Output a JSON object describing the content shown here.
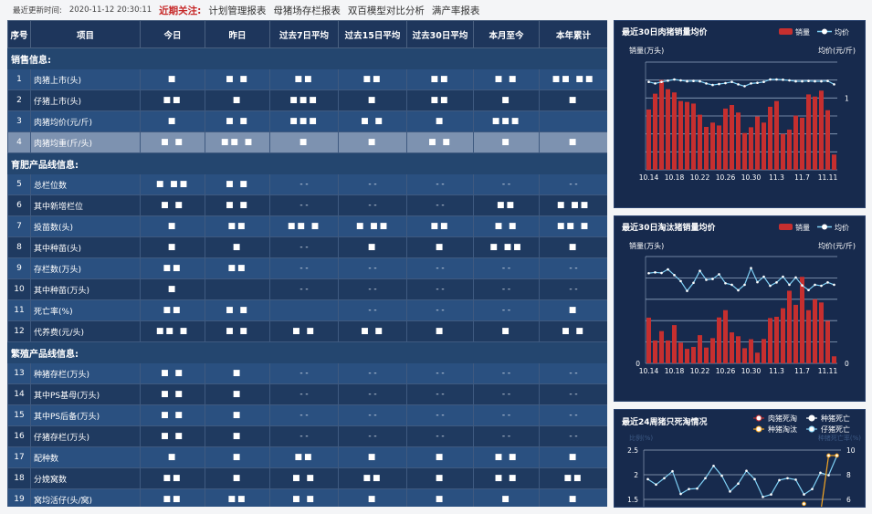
{
  "topbar": {
    "update_label": "最近更新时间:",
    "update_time": "2020-11-12 20:30:11",
    "focus_label": "近期关注:",
    "links": [
      "计划管理报表",
      "母猪场存栏报表",
      "双百模型对比分析",
      "满产率报表"
    ]
  },
  "table": {
    "headers": [
      "序号",
      "项目",
      "今日",
      "昨日",
      "过去7日平均",
      "过去15日平均",
      "过去30日平均",
      "本月至今",
      "本年累计"
    ],
    "sections": [
      {
        "title": "销售信息:",
        "rows": [
          {
            "no": "1",
            "name": "肉猪上市(头)",
            "cells": [
              "■",
              "■ ■",
              "■■",
              "■■",
              "■■",
              "■ ■",
              "■■ ■■"
            ]
          },
          {
            "no": "2",
            "name": "仔猪上市(头)",
            "cells": [
              "■■",
              "■",
              "■■■",
              "■",
              "■■",
              "■",
              "■"
            ]
          },
          {
            "no": "3",
            "name": "肉猪均价(元/斤)",
            "cells": [
              "■",
              "■ ■",
              "■■■",
              "■ ■",
              "■",
              "■■■",
              ""
            ]
          },
          {
            "no": "4",
            "name": "肉猪均重(斤/头)",
            "cells": [
              "■ ■",
              "■■ ■",
              "■",
              "■",
              "■ ■",
              "■",
              "■"
            ],
            "highlight": true
          }
        ]
      },
      {
        "title": "育肥产品线信息:",
        "rows": [
          {
            "no": "5",
            "name": "总栏位数",
            "cells": [
              "■ ■■",
              "■ ■",
              "- -",
              "- -",
              "- -",
              "- -",
              "- -"
            ]
          },
          {
            "no": "6",
            "name": "其中新增栏位",
            "cells": [
              "■ ■",
              "■ ■",
              "- -",
              "- -",
              "- -",
              "■■",
              "■ ■■"
            ]
          },
          {
            "no": "7",
            "name": "投苗数(头)",
            "cells": [
              "■",
              "■■",
              "■■ ■",
              "■ ■■",
              "■■",
              "■ ■",
              "■■ ■"
            ]
          },
          {
            "no": "8",
            "name": "其中种苗(头)",
            "cells": [
              "■",
              "■",
              "- -",
              "■",
              "■",
              "■ ■■",
              "■"
            ]
          },
          {
            "no": "9",
            "name": "存栏数(万头)",
            "cells": [
              "■■",
              "■■",
              "- -",
              "- -",
              "- -",
              "- -",
              "- -"
            ]
          },
          {
            "no": "10",
            "name": "其中种苗(万头)",
            "cells": [
              "■",
              "",
              "- -",
              "- -",
              "- -",
              "- -",
              "- -"
            ]
          },
          {
            "no": "11",
            "name": "死亡率(%)",
            "cells": [
              "■■",
              "■ ■",
              "",
              "- -",
              "- -",
              "- -",
              "■"
            ]
          },
          {
            "no": "12",
            "name": "代养费(元/头)",
            "cells": [
              "■■ ■",
              "■ ■",
              "■ ■",
              "■ ■",
              "■",
              "■",
              "■ ■"
            ]
          }
        ]
      },
      {
        "title": "繁殖产品线信息:",
        "rows": [
          {
            "no": "13",
            "name": "种猪存栏(万头)",
            "cells": [
              "■ ■",
              "■",
              "- -",
              "- -",
              "- -",
              "- -",
              "- -"
            ]
          },
          {
            "no": "14",
            "name": "其中PS基母(万头)",
            "cells": [
              "■ ■",
              "■",
              "- -",
              "- -",
              "- -",
              "- -",
              "- -"
            ]
          },
          {
            "no": "15",
            "name": "其中PS后备(万头)",
            "cells": [
              "■ ■",
              "■",
              "- -",
              "- -",
              "- -",
              "- -",
              "- -"
            ]
          },
          {
            "no": "16",
            "name": "仔猪存栏(万头)",
            "cells": [
              "■ ■",
              "■",
              "- -",
              "- -",
              "- -",
              "- -",
              "- -"
            ]
          },
          {
            "no": "17",
            "name": "配种数",
            "cells": [
              "■",
              "■",
              "■■",
              "■",
              "■",
              "■ ■",
              "■"
            ]
          },
          {
            "no": "18",
            "name": "分娩窝数",
            "cells": [
              "■■",
              "■",
              "■ ■",
              "■■",
              "■",
              "■ ■",
              "■■"
            ]
          },
          {
            "no": "19",
            "name": "窝均活仔(头/窝)",
            "cells": [
              "■■",
              "■■",
              "■ ■",
              "■",
              "■",
              "■",
              "■"
            ]
          }
        ]
      }
    ]
  },
  "colors": {
    "bar": "#c62f2f",
    "line": "#7fd0f5",
    "orange": "#f5a623",
    "panel": "#172a4d"
  },
  "chart_data": [
    {
      "type": "bar",
      "title": "最近30日肉猪销量均价",
      "legend": [
        "销量",
        "均价"
      ],
      "ylabel": "销量(万头)",
      "y2label": "均价(元/斤)",
      "y2ticks": [
        "1"
      ],
      "categories": [
        "10.14",
        "10.15",
        "10.16",
        "10.17",
        "10.18",
        "10.19",
        "10.20",
        "10.21",
        "10.22",
        "10.23",
        "10.24",
        "10.25",
        "10.26",
        "10.27",
        "10.28",
        "10.29",
        "10.30",
        "10.31",
        "11.1",
        "11.2",
        "11.3",
        "11.4",
        "11.5",
        "11.6",
        "11.7",
        "11.8",
        "11.9",
        "11.10",
        "11.11",
        "11.12"
      ],
      "xticks": [
        "10.14",
        "10.18",
        "10.22",
        "10.26",
        "10.30",
        "11.3",
        "11.7",
        "11.11"
      ],
      "ylim": [
        0,
        6
      ],
      "y2lim": [
        0,
        1.5
      ],
      "series": [
        {
          "name": "销量",
          "type": "bar",
          "values": [
            3.36,
            4.24,
            5.0,
            4.49,
            4.31,
            3.83,
            3.78,
            3.69,
            3.07,
            2.39,
            2.63,
            2.47,
            3.41,
            3.61,
            3.19,
            2.05,
            2.37,
            2.97,
            2.63,
            3.51,
            3.83,
            2.0,
            2.24,
            3.02,
            2.9,
            4.2,
            4.08,
            4.41,
            3.32,
            0.85
          ]
        },
        {
          "name": "均价",
          "type": "line",
          "axis": "right",
          "values": [
            1.224,
            1.203,
            1.224,
            1.241,
            1.258,
            1.245,
            1.232,
            1.237,
            1.232,
            1.203,
            1.181,
            1.194,
            1.207,
            1.224,
            1.19,
            1.164,
            1.203,
            1.211,
            1.224,
            1.258,
            1.258,
            1.254,
            1.245,
            1.232,
            1.232,
            1.237,
            1.232,
            1.232,
            1.237,
            1.19
          ]
        }
      ]
    },
    {
      "type": "bar",
      "title": "最近30日淘汰猪销量均价",
      "legend": [
        "销量",
        "均价"
      ],
      "ylabel": "销量(万头)",
      "y2label": "均价(元/斤)",
      "yticks": [
        "0"
      ],
      "y2ticks": [
        "0"
      ],
      "categories": [
        "10.14",
        "10.15",
        "10.16",
        "10.17",
        "10.18",
        "10.19",
        "10.20",
        "10.21",
        "10.22",
        "10.23",
        "10.24",
        "10.25",
        "10.26",
        "10.27",
        "10.28",
        "10.29",
        "10.30",
        "10.31",
        "11.1",
        "11.2",
        "11.3",
        "11.4",
        "11.5",
        "11.6",
        "11.7",
        "11.8",
        "11.9",
        "11.10",
        "11.11",
        "11.12"
      ],
      "xticks": [
        "10.14",
        "10.18",
        "10.22",
        "10.26",
        "10.30",
        "11.3",
        "11.7",
        "11.11"
      ],
      "ylim": [
        0,
        5
      ],
      "series": [
        {
          "name": "销量",
          "type": "bar",
          "values": [
            2.14,
            1.07,
            1.51,
            1.07,
            1.79,
            0.97,
            0.68,
            0.77,
            1.32,
            0.74,
            1.18,
            2.15,
            2.49,
            1.45,
            1.27,
            0.71,
            1.13,
            0.5,
            1.14,
            2.12,
            2.18,
            2.58,
            3.4,
            2.74,
            4.05,
            2.49,
            3.0,
            2.85,
            1.99,
            0.33
          ]
        },
        {
          "name": "均价",
          "type": "line",
          "values": [
            4.22,
            4.26,
            4.23,
            4.4,
            4.13,
            3.85,
            3.39,
            3.77,
            4.33,
            3.91,
            3.95,
            4.17,
            3.75,
            3.68,
            3.42,
            3.68,
            4.46,
            3.8,
            4.06,
            3.63,
            3.79,
            4.06,
            3.68,
            4.02,
            3.65,
            3.43,
            3.68,
            3.63,
            3.79,
            3.68
          ]
        }
      ]
    },
    {
      "type": "line",
      "title": "最近24周猪只死淘情况",
      "legend": [
        "肉猪死淘",
        "种猪死亡",
        "种猪淘汰",
        "仔猪死亡"
      ],
      "ylabel": "比例(%)",
      "y2label": "种猪死亡率(%)",
      "yticks": [
        "2.5",
        "2",
        "1.5"
      ],
      "y2ticks": [
        "10",
        "8",
        "6"
      ],
      "ylim": [
        1.5,
        2.5
      ],
      "y2lim": [
        6,
        10
      ],
      "series": [
        {
          "name": "仔猪死亡",
          "values": [
            1.91,
            1.8,
            1.93,
            2.07,
            1.61,
            1.71,
            1.72,
            1.93,
            2.18,
            1.98,
            1.66,
            1.82,
            2.08,
            1.91,
            1.55,
            1.6,
            1.89,
            1.93,
            1.9,
            1.6,
            1.71,
            2.04,
            1.99,
            2.38
          ]
        },
        {
          "name": "种猪淘汰",
          "values": [
            null,
            null,
            null,
            null,
            null,
            null,
            null,
            null,
            null,
            null,
            null,
            null,
            null,
            null,
            null,
            null,
            null,
            null,
            null,
            1.41,
            null,
            1.2,
            2.39,
            2.39
          ]
        }
      ]
    }
  ]
}
